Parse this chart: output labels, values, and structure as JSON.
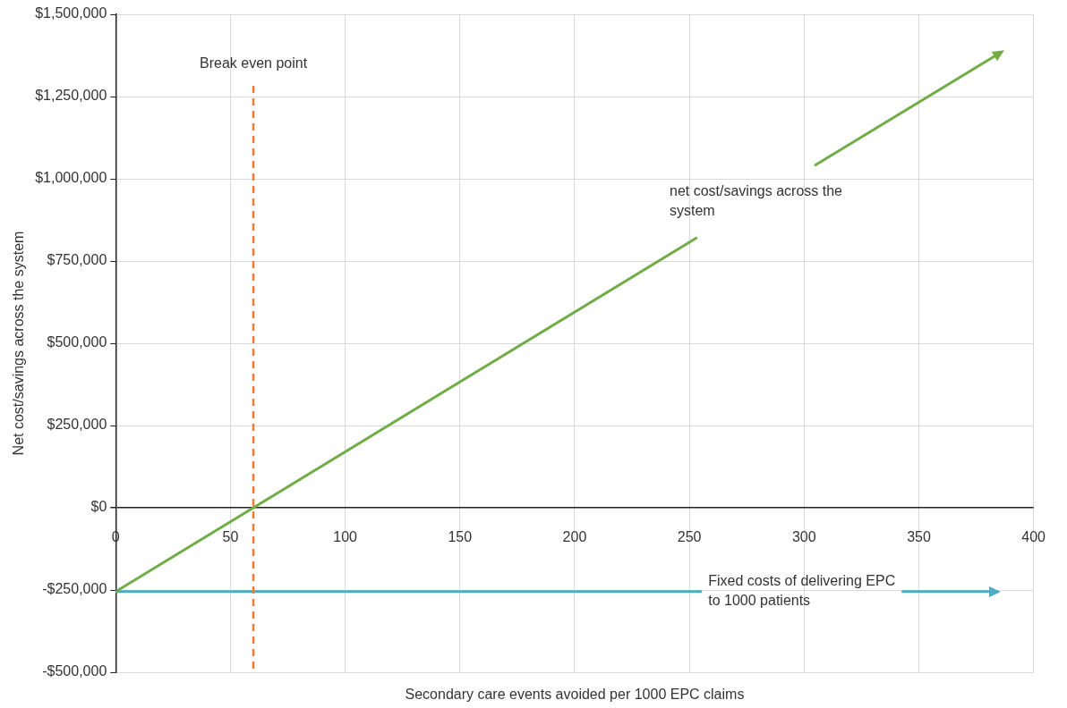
{
  "chart_data": {
    "type": "line",
    "xlabel": "Secondary care events avoided per 1000 EPC claims",
    "ylabel": "Net cost/savings across the system",
    "xlim": [
      0,
      400
    ],
    "xticks": [
      0,
      50,
      100,
      150,
      200,
      250,
      300,
      350,
      400
    ],
    "ylim": [
      -500000,
      1500000
    ],
    "yticks": [
      {
        "value": -500000,
        "label": "-$500,000"
      },
      {
        "value": -250000,
        "label": "-$250,000"
      },
      {
        "value": 0,
        "label": "$0"
      },
      {
        "value": 250000,
        "label": "$250,000"
      },
      {
        "value": 500000,
        "label": "$500,000"
      },
      {
        "value": 750000,
        "label": "$750,000"
      },
      {
        "value": 1000000,
        "label": "$1,000,000"
      },
      {
        "value": 1250000,
        "label": "$1,250,000"
      },
      {
        "value": 1500000,
        "label": "$1,500,000"
      }
    ],
    "series": [
      {
        "name": "net cost/savings across the system",
        "color": "#70ad47",
        "x": [
          0,
          60,
          253,
          279,
          305,
          385
        ],
        "values": [
          -255000,
          0,
          820000,
          null,
          1042000,
          1381000
        ]
      },
      {
        "name": "Fixed costs of delivering EPC to 1000 patients",
        "color": "#4bacc6",
        "x": [
          0,
          255,
          299,
          343,
          383
        ],
        "values": [
          -255000,
          -255000,
          null,
          -255000,
          -255000
        ]
      }
    ],
    "ref_lines": [
      {
        "axis": "x",
        "value": 60,
        "label": "Break even point",
        "color": "#ed7d31",
        "line_style": "dashed"
      }
    ],
    "grid": true,
    "legend": false,
    "marker": "none",
    "line_style": "solid"
  }
}
